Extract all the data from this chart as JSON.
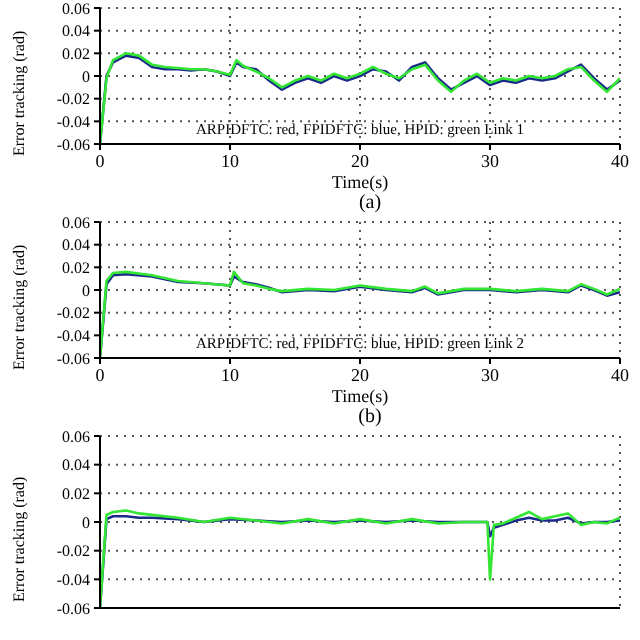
{
  "chart_data": [
    {
      "type": "line",
      "title": "(a)",
      "xlabel": "Time(s)",
      "ylabel": "Error tracking (rad)",
      "annotations": [
        "ARPIDFTC: red, FPIDFTC: blue, HPID: green  Link 1"
      ],
      "xlim": [
        0,
        40
      ],
      "xticks": [
        0,
        10,
        20,
        30,
        40
      ],
      "ylim": [
        -0.06,
        0.06
      ],
      "yticks": [
        -0.06,
        -0.04,
        -0.02,
        0,
        0.02,
        0.04,
        0.06
      ],
      "grid": true,
      "marker": "none",
      "line_style": "solid",
      "x": [
        0,
        0.5,
        1,
        2,
        3,
        4,
        5,
        6,
        7,
        8,
        9,
        10,
        10.5,
        11,
        12,
        13,
        14,
        15,
        16,
        17,
        18,
        19,
        20,
        21,
        22,
        23,
        24,
        25,
        26,
        27,
        28,
        29,
        30,
        31,
        32,
        33,
        34,
        35,
        36,
        37,
        38,
        39,
        40
      ],
      "series": [
        {
          "color": "#1a2a8a",
          "values": [
            -0.06,
            0,
            0.012,
            0.018,
            0.016,
            0.008,
            0.006,
            0.006,
            0.005,
            0.006,
            0.004,
            0,
            0.012,
            0.008,
            0.006,
            -0.004,
            -0.012,
            -0.006,
            -0.002,
            -0.006,
            0,
            -0.004,
            0,
            0.006,
            0.004,
            -0.004,
            0.008,
            0.012,
            -0.002,
            -0.012,
            -0.006,
            0,
            -0.008,
            -0.004,
            -0.006,
            -0.002,
            -0.004,
            -0.002,
            0.004,
            0.01,
            -0.002,
            -0.012,
            -0.004
          ]
        },
        {
          "color": "#33e633",
          "values": [
            -0.06,
            -0.002,
            0.014,
            0.02,
            0.018,
            0.01,
            0.008,
            0.007,
            0.006,
            0.006,
            0.004,
            0.001,
            0.014,
            0.009,
            0.004,
            -0.002,
            -0.01,
            -0.004,
            0,
            -0.004,
            0.002,
            -0.002,
            0.002,
            0.008,
            0.002,
            -0.002,
            0.006,
            0.01,
            -0.004,
            -0.014,
            -0.004,
            0.002,
            -0.006,
            -0.002,
            -0.004,
            0,
            -0.002,
            0,
            0.006,
            0.008,
            -0.004,
            -0.014,
            -0.002
          ]
        }
      ]
    },
    {
      "type": "line",
      "title": "(b)",
      "xlabel": "Time(s)",
      "ylabel": "Error tracking (rad)",
      "annotations": [
        "ARPIDFTC: red, FPIDFTC: blue, HPID: green  Link 2"
      ],
      "xlim": [
        0,
        40
      ],
      "xticks": [
        0,
        10,
        20,
        30,
        40
      ],
      "ylim": [
        -0.06,
        0.06
      ],
      "yticks": [
        -0.06,
        -0.04,
        -0.02,
        0,
        0.02,
        0.04,
        0.06
      ],
      "grid": true,
      "marker": "none",
      "line_style": "solid",
      "x": [
        0,
        0.5,
        1,
        2,
        4,
        6,
        8,
        10,
        10.3,
        11,
        12,
        13,
        14,
        16,
        18,
        20,
        22,
        24,
        25,
        26,
        28,
        30,
        32,
        34,
        36,
        37,
        38,
        39,
        40
      ],
      "series": [
        {
          "color": "#1a2a8a",
          "values": [
            -0.06,
            0.005,
            0.013,
            0.014,
            0.012,
            0.007,
            0.006,
            0.004,
            0.012,
            0.007,
            0.005,
            0.002,
            -0.002,
            0,
            -0.001,
            0.003,
            0,
            -0.002,
            0.002,
            -0.004,
            0,
            0,
            -0.002,
            0,
            -0.002,
            0.004,
            0,
            -0.005,
            -0.002
          ]
        },
        {
          "color": "#33e633",
          "values": [
            -0.06,
            0.008,
            0.015,
            0.016,
            0.013,
            0.008,
            0.006,
            0.004,
            0.016,
            0.006,
            0.004,
            0.001,
            -0.001,
            0.001,
            0,
            0.004,
            0.001,
            -0.001,
            0.003,
            -0.003,
            0.001,
            0.001,
            -0.001,
            0.001,
            -0.001,
            0.005,
            0.001,
            -0.004,
            0.001
          ]
        }
      ]
    },
    {
      "type": "line",
      "ylabel": "Error tracking (rad)",
      "xlim": [
        0,
        40
      ],
      "xticks": [
        0,
        10,
        20,
        30,
        40
      ],
      "ylim": [
        -0.06,
        0.06
      ],
      "yticks": [
        -0.06,
        -0.04,
        -0.02,
        0,
        0.02,
        0.04,
        0.06
      ],
      "grid": true,
      "marker": "none",
      "line_style": "solid",
      "tick_labels": "y",
      "x": [
        0,
        0.5,
        1,
        2,
        3,
        4,
        6,
        8,
        10,
        12,
        14,
        16,
        18,
        20,
        22,
        24,
        26,
        28,
        29.8,
        30,
        30.3,
        31,
        32,
        33,
        34,
        35,
        36,
        37,
        38,
        39,
        40
      ],
      "series": [
        {
          "color": "#1a2a8a",
          "values": [
            -0.06,
            0.002,
            0.004,
            0.004,
            0.003,
            0.003,
            0.002,
            0,
            0.002,
            0.001,
            0,
            0.001,
            0,
            0.001,
            0,
            0.001,
            0,
            0,
            0,
            -0.01,
            -0.004,
            -0.002,
            0.001,
            0.003,
            0.001,
            0.001,
            0.003,
            -0.001,
            0,
            0,
            0.001
          ]
        },
        {
          "color": "#33e633",
          "values": [
            -0.06,
            0.005,
            0.007,
            0.008,
            0.006,
            0.005,
            0.003,
            0,
            0.003,
            0.001,
            -0.001,
            0.002,
            -0.001,
            0.002,
            -0.001,
            0.002,
            -0.001,
            0,
            0,
            -0.04,
            -0.002,
            -0.001,
            0.003,
            0.007,
            0.002,
            0.004,
            0.006,
            -0.002,
            0,
            -0.001,
            0.003
          ]
        }
      ]
    }
  ]
}
